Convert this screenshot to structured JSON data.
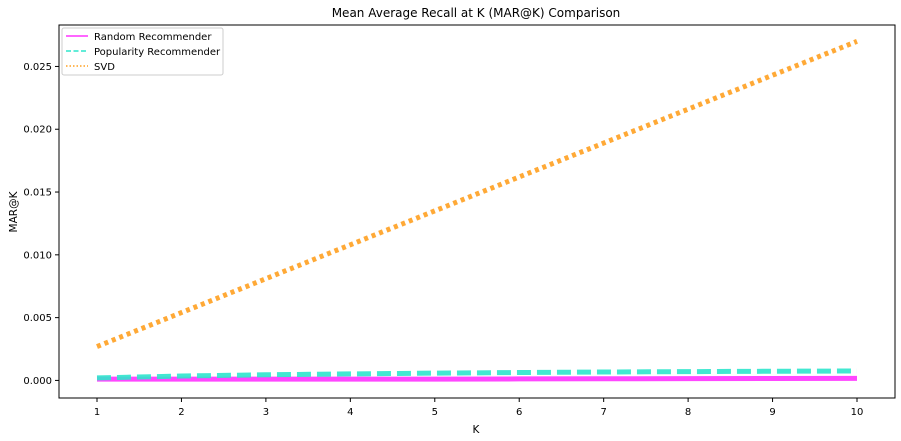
{
  "chart_data": {
    "type": "line",
    "title": "Mean Average Recall at K (MAR@K) Comparison",
    "xlabel": "K",
    "ylabel": "MAR@K",
    "x": [
      1,
      2,
      3,
      4,
      5,
      6,
      7,
      8,
      9,
      10
    ],
    "xlim": [
      0.55,
      10.45
    ],
    "ylim": [
      -0.0014,
      0.0283
    ],
    "xticks": [
      "1",
      "2",
      "3",
      "4",
      "5",
      "6",
      "7",
      "8",
      "9",
      "10"
    ],
    "yticks": [
      "0.000",
      "0.005",
      "0.010",
      "0.015",
      "0.020",
      "0.025"
    ],
    "ytick_values": [
      0,
      0.005,
      0.01,
      0.015,
      0.02,
      0.025
    ],
    "grid": false,
    "legend_position": "top-left",
    "series": [
      {
        "name": "Random Recommender",
        "color": "#ff33ff",
        "style": "solid",
        "values": [
          0.0001,
          0.0001,
          0.0001,
          0.0001,
          0.0001,
          0.00012,
          0.00013,
          0.00014,
          0.00015,
          0.00016
        ]
      },
      {
        "name": "Popularity Recommender",
        "color": "#2ee6cc",
        "style": "dashed",
        "values": [
          0.0002,
          0.00035,
          0.00045,
          0.00052,
          0.00058,
          0.00063,
          0.00067,
          0.0007,
          0.00073,
          0.00075
        ]
      },
      {
        "name": "SVD",
        "color": "#ffa020",
        "style": "dotted",
        "values": [
          0.0027,
          0.0054,
          0.0081,
          0.0108,
          0.0135,
          0.0162,
          0.0189,
          0.0216,
          0.0243,
          0.027
        ]
      }
    ]
  }
}
